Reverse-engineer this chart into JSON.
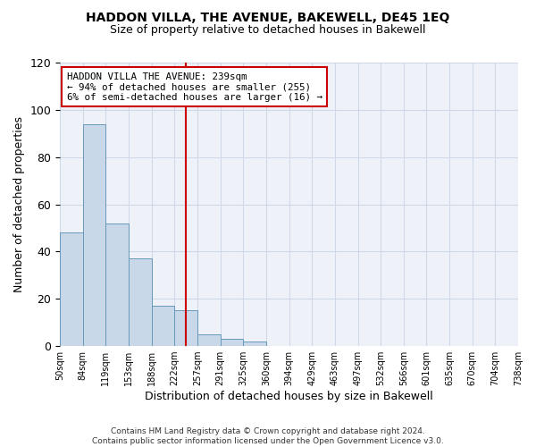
{
  "title": "HADDON VILLA, THE AVENUE, BAKEWELL, DE45 1EQ",
  "subtitle": "Size of property relative to detached houses in Bakewell",
  "xlabel": "Distribution of detached houses by size in Bakewell",
  "ylabel": "Number of detached properties",
  "footnote1": "Contains HM Land Registry data © Crown copyright and database right 2024.",
  "footnote2": "Contains public sector information licensed under the Open Government Licence v3.0.",
  "bin_labels": [
    "50sqm",
    "84sqm",
    "119sqm",
    "153sqm",
    "188sqm",
    "222sqm",
    "257sqm",
    "291sqm",
    "325sqm",
    "360sqm",
    "394sqm",
    "429sqm",
    "463sqm",
    "497sqm",
    "532sqm",
    "566sqm",
    "601sqm",
    "635sqm",
    "670sqm",
    "704sqm",
    "738sqm"
  ],
  "bar_values": [
    48,
    94,
    52,
    37,
    17,
    15,
    5,
    3,
    2,
    0,
    0,
    0,
    0,
    0,
    0,
    0,
    0,
    0,
    0,
    0
  ],
  "bar_color": "#c8d8e8",
  "bar_edge_color": "#6699bb",
  "ylim": [
    0,
    120
  ],
  "yticks": [
    0,
    20,
    40,
    60,
    80,
    100,
    120
  ],
  "bin_starts": [
    50,
    84,
    119,
    153,
    188,
    222,
    257,
    291,
    325,
    360,
    394,
    429,
    463,
    497,
    532,
    566,
    601,
    635,
    670,
    704,
    738
  ],
  "property_size": 239,
  "property_label": "HADDON VILLA THE AVENUE: 239sqm",
  "pct_smaller": 94,
  "count_smaller": 255,
  "pct_larger": 6,
  "count_larger": 16,
  "vline_color": "#cc0000",
  "annotation_box_color": "#cc0000",
  "grid_color": "#d0d8e8",
  "background_color": "#eef2f8"
}
